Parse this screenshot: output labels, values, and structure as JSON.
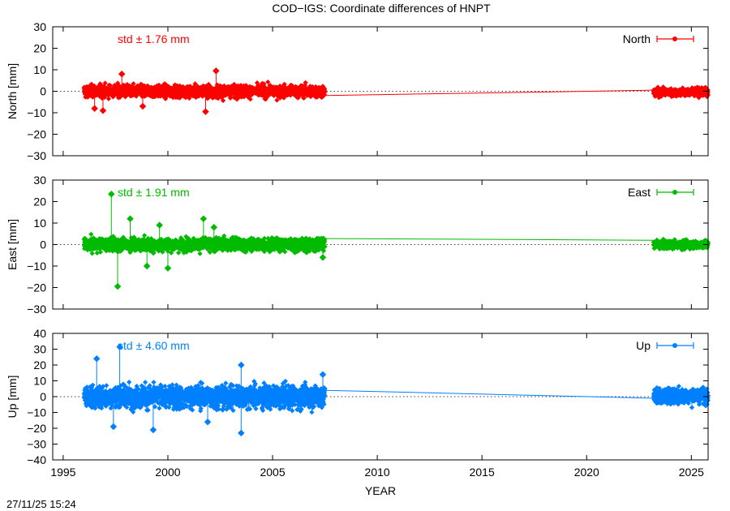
{
  "title": "COD−IGS: Coordinate differences of HNPT",
  "timestamp": "27/11/25 15:24",
  "colors": {
    "north": "#ff0000",
    "east": "#00bb00",
    "up": "#0080ff",
    "axis": "#000000",
    "zero_line": "#000000"
  },
  "chart_data": [
    {
      "type": "scatter",
      "panel": "north",
      "title": "",
      "ylabel": "North [mm]",
      "xlabel": "",
      "xlim": [
        1994.5,
        2025.8
      ],
      "ylim": [
        -30,
        30
      ],
      "yticks": [
        -30,
        -20,
        -10,
        0,
        10,
        20,
        30
      ],
      "ytick_labels": [
        "−30",
        "−20",
        "−10",
        "0",
        "10",
        "20",
        "30"
      ],
      "grid": false,
      "zero_line": "dotted",
      "annotation": "std ± 1.76 mm",
      "legend": {
        "label": "North",
        "position": "top-right"
      },
      "series": [
        {
          "name": "North",
          "color": "#ff0000",
          "segments": [
            {
              "x_range": [
                1996.0,
                2007.5
              ],
              "mean": 0.0,
              "spread": 1.76,
              "band_ranges": [
                [
                  1996.0,
                  1999.0,
                  -5,
                  7
                ],
                [
                  1999.0,
                  2002.0,
                  -7,
                  6
                ],
                [
                  2002.0,
                  2005.0,
                  -6,
                  6
                ],
                [
                  2005.0,
                  2007.5,
                  -5,
                  4
                ]
              ],
              "outliers": [
                [
                  1996.5,
                  -8
                ],
                [
                  1996.9,
                  -9
                ],
                [
                  1997.8,
                  8
                ],
                [
                  2001.8,
                  -9.5
                ],
                [
                  2002.3,
                  9.5
                ],
                [
                  1998.8,
                  -7
                ]
              ]
            },
            {
              "x_range": [
                2023.2,
                2025.8
              ],
              "mean": -0.5,
              "spread": 1.2,
              "band_ranges": [
                [
                  2023.2,
                  2025.8,
                  -4,
                  3
                ]
              ],
              "outliers": []
            }
          ],
          "gap_line": [
            [
              2007.5,
              -2.0
            ],
            [
              2023.2,
              0.5
            ]
          ]
        }
      ]
    },
    {
      "type": "scatter",
      "panel": "east",
      "title": "",
      "ylabel": "East [mm]",
      "xlabel": "",
      "xlim": [
        1994.5,
        2025.8
      ],
      "ylim": [
        -30,
        30
      ],
      "yticks": [
        -30,
        -20,
        -10,
        0,
        10,
        20,
        30
      ],
      "ytick_labels": [
        "−30",
        "−20",
        "−10",
        "0",
        "10",
        "20",
        "30"
      ],
      "grid": false,
      "zero_line": "dotted",
      "annotation": "std ± 1.91 mm",
      "legend": {
        "label": "East",
        "position": "top-right"
      },
      "series": [
        {
          "name": "East",
          "color": "#00bb00",
          "segments": [
            {
              "x_range": [
                1996.0,
                2007.5
              ],
              "mean": 0.0,
              "spread": 1.91,
              "band_ranges": [
                [
                  1996.0,
                  1999.0,
                  -8,
                  6
                ],
                [
                  1999.0,
                  2002.0,
                  -7,
                  5
                ],
                [
                  2002.0,
                  2005.0,
                  -5,
                  4
                ],
                [
                  2005.0,
                  2007.5,
                  -4,
                  3
                ]
              ],
              "outliers": [
                [
                  1997.3,
                  23.5
                ],
                [
                  1997.6,
                  -19.5
                ],
                [
                  1998.2,
                  12
                ],
                [
                  2001.7,
                  12
                ],
                [
                  2002.2,
                  8
                ],
                [
                  1999.6,
                  9
                ],
                [
                  1999.0,
                  -10
                ],
                [
                  2000.0,
                  -11
                ],
                [
                  2007.4,
                  -6
                ]
              ]
            },
            {
              "x_range": [
                2023.2,
                2025.8
              ],
              "mean": 0.0,
              "spread": 1.2,
              "band_ranges": [
                [
                  2023.2,
                  2025.8,
                  -3,
                  3
                ]
              ],
              "outliers": []
            }
          ],
          "gap_line": [
            [
              2007.5,
              2.8
            ],
            [
              2023.2,
              2.0
            ]
          ]
        }
      ]
    },
    {
      "type": "scatter",
      "panel": "up",
      "title": "",
      "ylabel": "Up [mm]",
      "xlabel": "YEAR",
      "xlim": [
        1994.5,
        2025.8
      ],
      "ylim": [
        -40,
        40
      ],
      "yticks": [
        -40,
        -30,
        -20,
        -10,
        0,
        10,
        20,
        30,
        40
      ],
      "ytick_labels": [
        "−40",
        "−30",
        "−20",
        "−10",
        "0",
        "10",
        "20",
        "30",
        "40"
      ],
      "xticks": [
        1995,
        2000,
        2005,
        2010,
        2015,
        2020,
        2025
      ],
      "xtick_labels": [
        "1995",
        "2000",
        "2005",
        "2010",
        "2015",
        "2020",
        "2025"
      ],
      "grid": false,
      "zero_line": "dotted",
      "annotation": "std ± 4.60 mm",
      "legend": {
        "label": "Up",
        "position": "top-right"
      },
      "series": [
        {
          "name": "Up",
          "color": "#0080ff",
          "segments": [
            {
              "x_range": [
                1996.0,
                2007.5
              ],
              "mean": 0.0,
              "spread": 4.6,
              "band_ranges": [
                [
                  1996.0,
                  1999.0,
                  -12,
                  13
                ],
                [
                  1999.0,
                  2002.0,
                  -14,
                  15
                ],
                [
                  2002.0,
                  2005.0,
                  -13,
                  14
                ],
                [
                  2005.0,
                  2007.5,
                  -10,
                  11
                ]
              ],
              "outliers": [
                [
                  1996.6,
                  24
                ],
                [
                  1997.7,
                  31.5
                ],
                [
                  1997.4,
                  -19
                ],
                [
                  1999.3,
                  -21
                ],
                [
                  2001.9,
                  -16
                ],
                [
                  2003.5,
                  20
                ],
                [
                  2003.5,
                  -23
                ],
                [
                  2007.4,
                  14
                ]
              ]
            },
            {
              "x_range": [
                2023.2,
                2025.8
              ],
              "mean": 0.5,
              "spread": 3.0,
              "band_ranges": [
                [
                  2023.2,
                  2025.8,
                  -8,
                  12
                ]
              ],
              "outliers": []
            }
          ],
          "gap_line": [
            [
              2007.5,
              4.0
            ],
            [
              2023.2,
              -1.0
            ]
          ]
        }
      ]
    }
  ]
}
